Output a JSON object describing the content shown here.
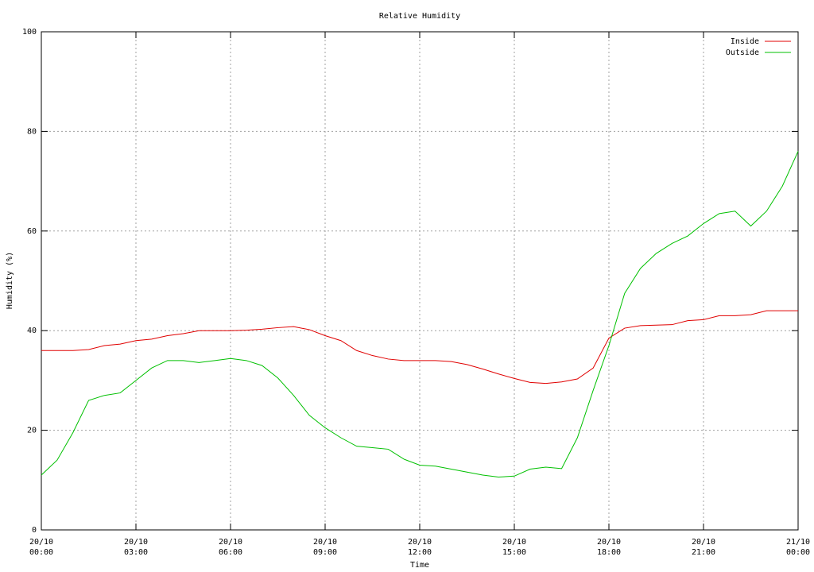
{
  "chart_data": {
    "type": "line",
    "title": "Relative Humidity",
    "x_label": "Time",
    "y_label": "Humidity (%)",
    "x": [
      0,
      0.5,
      1,
      1.5,
      2,
      2.5,
      3,
      3.5,
      4,
      4.5,
      5,
      5.5,
      6,
      6.5,
      7,
      7.5,
      8,
      8.5,
      9,
      9.5,
      10,
      10.5,
      11,
      11.5,
      12,
      12.5,
      13,
      13.5,
      14,
      14.5,
      15,
      15.5,
      16,
      16.5,
      17,
      17.5,
      18,
      18.5,
      19,
      19.5,
      20,
      20.5,
      21,
      21.5,
      22,
      22.5,
      23,
      23.5,
      24
    ],
    "series": [
      {
        "name": "Inside",
        "color": "#e00000",
        "values": [
          36,
          36,
          36,
          36.2,
          37,
          37.3,
          38,
          38.3,
          39,
          39.4,
          40,
          40,
          40,
          40.1,
          40.3,
          40.6,
          40.8,
          40.2,
          39,
          38,
          36,
          35,
          34.3,
          34,
          34,
          34,
          33.8,
          33.2,
          32.3,
          31.3,
          30.4,
          29.6,
          29.4,
          29.7,
          30.3,
          32.5,
          38.5,
          40.5,
          41,
          41.1,
          41.2,
          42,
          42.2,
          43,
          43,
          43.2,
          44,
          44,
          44
        ]
      },
      {
        "name": "Outside",
        "color": "#00c000",
        "values": [
          11,
          14,
          19.5,
          26,
          27,
          27.5,
          30,
          32.5,
          34,
          34,
          33.6,
          34,
          34.4,
          34,
          33,
          30.5,
          27,
          23,
          20.5,
          18.5,
          16.8,
          16.5,
          16.2,
          14.2,
          13,
          12.8,
          12.2,
          11.6,
          11,
          10.6,
          10.8,
          12.2,
          12.6,
          12.3,
          18.5,
          28,
          37,
          47.5,
          52.5,
          55.5,
          57.5,
          59,
          61.5,
          63.5,
          64,
          61,
          64,
          69,
          76
        ]
      }
    ],
    "xlim": [
      0,
      24
    ],
    "xticks": [
      {
        "value": 0,
        "label": "20/10\n00:00"
      },
      {
        "value": 3,
        "label": "20/10\n03:00"
      },
      {
        "value": 6,
        "label": "20/10\n06:00"
      },
      {
        "value": 9,
        "label": "20/10\n09:00"
      },
      {
        "value": 12,
        "label": "20/10\n12:00"
      },
      {
        "value": 15,
        "label": "20/10\n15:00"
      },
      {
        "value": 18,
        "label": "20/10\n18:00"
      },
      {
        "value": 21,
        "label": "20/10\n21:00"
      },
      {
        "value": 24,
        "label": "21/10\n00:00"
      }
    ],
    "ylim": [
      0,
      100
    ],
    "yticks": [
      0,
      20,
      40,
      60,
      80,
      100
    ],
    "grid": true,
    "legend": "top-right"
  }
}
